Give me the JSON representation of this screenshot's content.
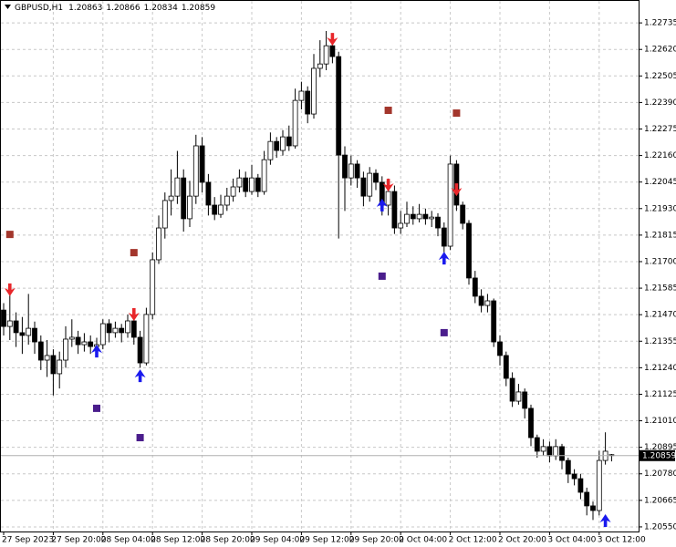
{
  "chart_data": {
    "type": "candlestick",
    "title": "GBPUSD,H1",
    "categories": [
      "27 Sep 2023",
      null,
      null,
      null,
      null,
      null,
      null,
      null,
      "27 Sep 20:00",
      null,
      null,
      null,
      null,
      null,
      null,
      null,
      "28 Sep 04:00",
      null,
      null,
      null,
      null,
      null,
      null,
      null,
      "28 Sep 12:00",
      null,
      null,
      null,
      null,
      null,
      null,
      null,
      "28 Sep 20:00",
      null,
      null,
      null,
      null,
      null,
      null,
      null,
      "29 Sep 04:00",
      null,
      null,
      null,
      null,
      null,
      null,
      null,
      "29 Sep 12:00",
      null,
      null,
      null,
      null,
      null,
      null,
      null,
      "29 Sep 20:00",
      null,
      null,
      null,
      null,
      null,
      null,
      null,
      "2 Oct 04:00",
      null,
      null,
      null,
      null,
      null,
      null,
      null,
      "2 Oct 12:00",
      null,
      null,
      null,
      null,
      null,
      null,
      null,
      "2 Oct 20:00",
      null,
      null,
      null,
      null,
      null,
      null,
      null,
      "3 Oct 04:00",
      null,
      null,
      null,
      null,
      null,
      null,
      null,
      "3 Oct 12:00",
      null,
      null
    ],
    "open": [
      1.2149,
      1.21419,
      1.21443,
      1.21392,
      1.2138,
      1.21411,
      1.21352,
      1.21273,
      1.21293,
      1.21214,
      1.21273,
      1.21364,
      1.21372,
      1.2134,
      1.21352,
      1.21332,
      1.2134,
      1.21431,
      1.21392,
      1.21411,
      1.21392,
      1.21443,
      1.21372,
      1.21261,
      1.21471,
      1.21708,
      1.21846,
      1.21965,
      1.21984,
      1.22063,
      1.21886,
      1.21984,
      1.22202,
      1.22044,
      1.21945,
      1.21905,
      1.21945,
      1.21984,
      1.22024,
      1.22063,
      1.22004,
      1.22063,
      1.22004,
      1.22142,
      1.22221,
      1.22182,
      1.22241,
      1.22202,
      1.22399,
      1.22439,
      1.2234,
      1.22538,
      1.22557,
      1.22636,
      1.22589,
      1.22162,
      1.22063,
      1.22123,
      1.22063,
      1.21984,
      1.22083,
      1.22044,
      1.21945,
      1.22004,
      1.21846,
      1.21866,
      1.21905,
      1.21886,
      1.21905,
      1.21886,
      1.21893,
      1.21846,
      1.21767,
      1.22123,
      1.21945,
      1.21866,
      1.21629,
      1.2155,
      1.2151,
      1.2153,
      1.21352,
      1.21293,
      1.21194,
      1.21095,
      1.21135,
      1.21064,
      1.20937,
      1.20878,
      1.20898,
      1.20858,
      1.20898,
      1.20838,
      1.20779,
      1.20759,
      1.207,
      1.20641,
      1.20621,
      1.20838,
      1.20863
    ],
    "high": [
      1.2152,
      1.216,
      1.2148,
      1.2146,
      1.2156,
      1.2144,
      1.2138,
      1.2136,
      1.2132,
      1.2131,
      1.2142,
      1.2145,
      1.214,
      1.2139,
      1.2138,
      1.2137,
      1.2145,
      1.2145,
      1.2144,
      1.2143,
      1.2147,
      1.2146,
      1.214,
      1.215,
      1.2174,
      1.219,
      1.22,
      1.221,
      1.2218,
      1.221,
      1.2205,
      1.2225,
      1.2224,
      1.2208,
      1.2198,
      1.2199,
      1.2202,
      1.2206,
      1.221,
      1.2209,
      1.2212,
      1.2208,
      1.2218,
      1.2226,
      1.2224,
      1.2227,
      1.2229,
      1.2245,
      1.2248,
      1.2246,
      1.226,
      1.2266,
      1.227,
      1.2268,
      1.2261,
      1.222,
      1.2216,
      1.2214,
      1.2209,
      1.2211,
      1.221,
      1.2207,
      1.2206,
      1.2203,
      1.2192,
      1.2196,
      1.2194,
      1.2195,
      1.2193,
      1.2192,
      1.2191,
      1.2187,
      1.2216,
      1.2214,
      1.2196,
      1.2188,
      1.2166,
      1.2158,
      1.2156,
      1.2154,
      1.2138,
      1.2131,
      1.2122,
      1.2117,
      1.2115,
      1.2108,
      1.2095,
      1.2093,
      1.2092,
      1.2093,
      1.2091,
      1.2085,
      1.208,
      1.2078,
      1.2072,
      1.2066,
      1.2088,
      1.2096,
      1.20866
    ],
    "low": [
      1.2138,
      1.2136,
      1.2133,
      1.213,
      1.2134,
      1.213,
      1.2123,
      1.212,
      1.2112,
      1.2115,
      1.2124,
      1.2133,
      1.213,
      1.2131,
      1.213,
      1.2129,
      1.2132,
      1.2135,
      1.2137,
      1.2135,
      1.2137,
      1.2134,
      1.2124,
      1.2125,
      1.2145,
      1.2169,
      1.218,
      1.219,
      1.2195,
      1.2183,
      1.2185,
      1.2195,
      1.22,
      1.219,
      1.2188,
      1.2189,
      1.2192,
      1.2196,
      1.22,
      1.2198,
      1.2199,
      1.2198,
      1.2199,
      1.2212,
      1.2215,
      1.2216,
      1.2218,
      1.2219,
      1.2236,
      1.223,
      1.2232,
      1.225,
      1.2253,
      1.2256,
      1.218,
      1.2192,
      1.2203,
      1.2202,
      1.2194,
      1.2196,
      1.2201,
      1.219,
      1.219,
      1.2182,
      1.2182,
      1.2185,
      1.2186,
      1.2187,
      1.2186,
      1.2185,
      1.2181,
      1.2174,
      1.2175,
      1.2192,
      1.2184,
      1.216,
      1.2152,
      1.2148,
      1.2148,
      1.2133,
      1.2125,
      1.2116,
      1.2107,
      1.2108,
      1.2102,
      1.209,
      1.2085,
      1.2086,
      1.2083,
      1.2084,
      1.208,
      1.2074,
      1.2073,
      1.2067,
      1.206,
      1.2058,
      1.206,
      1.2082,
      1.20834
    ],
    "close": [
      1.21419,
      1.21443,
      1.21392,
      1.2138,
      1.21411,
      1.21352,
      1.21273,
      1.21293,
      1.21214,
      1.21273,
      1.21364,
      1.21372,
      1.2134,
      1.21352,
      1.21332,
      1.2134,
      1.21431,
      1.21392,
      1.21411,
      1.21392,
      1.21443,
      1.21372,
      1.21261,
      1.21471,
      1.21708,
      1.21846,
      1.21965,
      1.21984,
      1.22063,
      1.21886,
      1.21984,
      1.22202,
      1.22044,
      1.21945,
      1.21905,
      1.21945,
      1.21984,
      1.22024,
      1.22063,
      1.22004,
      1.22063,
      1.22004,
      1.22142,
      1.22221,
      1.22182,
      1.22241,
      1.22202,
      1.22399,
      1.22439,
      1.2234,
      1.22538,
      1.22557,
      1.22636,
      1.22589,
      1.22162,
      1.22063,
      1.22123,
      1.22063,
      1.21984,
      1.22083,
      1.22044,
      1.21945,
      1.22004,
      1.21846,
      1.21866,
      1.21905,
      1.21886,
      1.21905,
      1.21886,
      1.21893,
      1.21846,
      1.21767,
      1.22123,
      1.21945,
      1.21866,
      1.21629,
      1.2155,
      1.2151,
      1.2153,
      1.21352,
      1.21293,
      1.21194,
      1.21095,
      1.21135,
      1.21064,
      1.20937,
      1.20878,
      1.20898,
      1.20858,
      1.20898,
      1.20838,
      1.20779,
      1.20759,
      1.207,
      1.20641,
      1.20621,
      1.20838,
      1.20878,
      1.20859
    ],
    "signals": [
      {
        "marker": "arrow-down",
        "color": "#e8262a",
        "x": [
          1,
          21,
          53,
          62,
          73
        ],
        "values": [
          1.2155,
          1.21443,
          1.22636,
          1.22004,
          1.21984
        ]
      },
      {
        "marker": "arrow-up",
        "color": "#1a1aee",
        "x": [
          15,
          22,
          61,
          71,
          97
        ],
        "values": [
          1.2134,
          1.21233,
          1.21973,
          1.21743,
          1.20605
        ]
      },
      {
        "marker": "square",
        "color": "#a3362c",
        "x": [
          1,
          21,
          62,
          73
        ],
        "values": [
          1.21818,
          1.21739,
          1.22356,
          1.22344
        ]
      },
      {
        "marker": "square",
        "color": "#4a1d8c",
        "x": [
          15,
          22,
          61,
          71
        ],
        "values": [
          1.21064,
          1.20937,
          1.21637,
          1.21392
        ]
      }
    ],
    "ylim": [
      1.2053,
      1.22775
    ],
    "yticks": [
      1.22735,
      {
        "value": 1.2262,
        "label": "1.22620"
      },
      1.22505,
      {
        "value": 1.2239,
        "label": "1.22390"
      },
      1.22275,
      {
        "value": 1.2216,
        "label": "1.22160"
      },
      1.22045,
      {
        "value": 1.2193,
        "label": "1.21930"
      },
      1.21815,
      {
        "value": 1.217,
        "label": "1.21700"
      },
      1.21585,
      {
        "value": 1.2147,
        "label": "1.21470"
      },
      1.21355,
      {
        "value": 1.2124,
        "label": "1.21240"
      },
      1.21125,
      {
        "value": 1.2101,
        "label": "1.21010"
      },
      1.20895,
      {
        "value": 1.2078,
        "label": "1.20780"
      },
      1.20665,
      {
        "value": 1.2055,
        "label": "1.20550"
      }
    ],
    "grid": true,
    "up_color": "#ffffff",
    "down_color": "#000000"
  }
}
